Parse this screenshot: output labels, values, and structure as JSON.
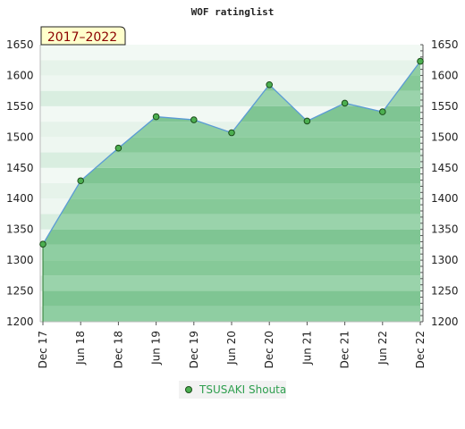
{
  "chart_data": {
    "type": "area",
    "title": "WOF ratinglist",
    "period_label": "2017–2022",
    "categories": [
      "Dec 17",
      "Jun 18",
      "Dec 18",
      "Jun 19",
      "Dec 19",
      "Jun 20",
      "Dec 20",
      "Jun 21",
      "Dec 21",
      "Jun 22",
      "Dec 22"
    ],
    "series": [
      {
        "name": "TSUSAKI Shouta",
        "values": [
          1326,
          1429,
          1482,
          1533,
          1528,
          1507,
          1585,
          1526,
          1555,
          1541,
          1623
        ]
      }
    ],
    "y_ticks": [
      "1200",
      "1250",
      "1300",
      "1350",
      "1400",
      "1450",
      "1500",
      "1550",
      "1600",
      "1650"
    ],
    "ylim": [
      1200,
      1650
    ],
    "legend_position": "bottom",
    "colors": {
      "line": "#5b9bd5",
      "marker": "#4caf50",
      "legend_text": "#2e9e4e",
      "period_bg": "#ffffcc"
    }
  }
}
